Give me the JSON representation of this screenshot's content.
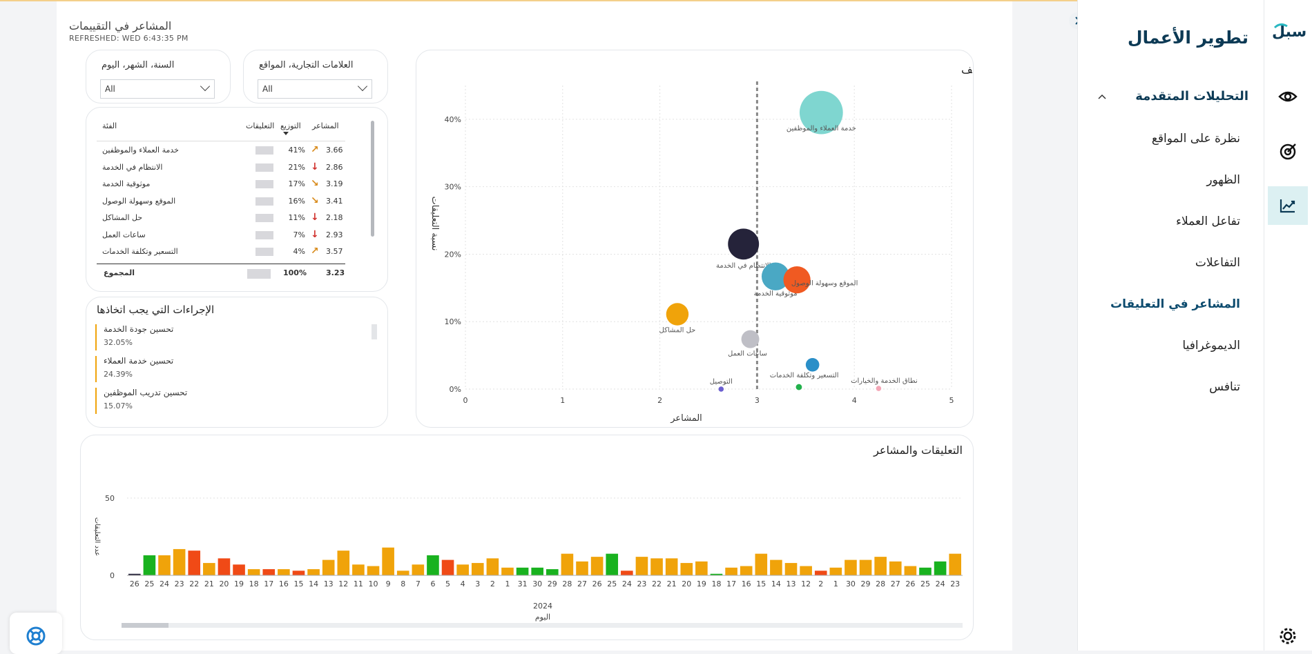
{
  "page": {
    "title": "المشاعر في التقييمات",
    "refreshed": "REFRESHED: WED 6:43:35 PM"
  },
  "slicers": {
    "date": {
      "label": "السنة، الشهر، اليوم",
      "value": "All"
    },
    "brand": {
      "label": "العلامات التجارية، المواقع",
      "value": "All"
    }
  },
  "table": {
    "headers": {
      "category": "الفئة",
      "comments": "التعليقات",
      "distribution": "التوزيع",
      "sentiment": "المشاعر"
    },
    "rows": [
      {
        "category": "خدمة العملاء والموظفين",
        "distribution": "41%",
        "sentiment": "3.66",
        "trend": "up-right",
        "trend_color": "#d88b1c"
      },
      {
        "category": "الانتظام في الخدمة",
        "distribution": "21%",
        "sentiment": "2.86",
        "trend": "down",
        "trend_color": "#d0312d"
      },
      {
        "category": "موثوقية الخدمة",
        "distribution": "17%",
        "sentiment": "3.19",
        "trend": "down-right",
        "trend_color": "#d88b1c"
      },
      {
        "category": "الموقع وسهولة الوصول",
        "distribution": "16%",
        "sentiment": "3.41",
        "trend": "down-right",
        "trend_color": "#d88b1c"
      },
      {
        "category": "حل المشاكل",
        "distribution": "11%",
        "sentiment": "2.18",
        "trend": "down",
        "trend_color": "#d0312d"
      },
      {
        "category": "ساعات العمل",
        "distribution": "7%",
        "sentiment": "2.93",
        "trend": "down",
        "trend_color": "#d0312d"
      },
      {
        "category": "التسعير وتكلفة الخدمات",
        "distribution": "4%",
        "sentiment": "3.57",
        "trend": "up-right",
        "trend_color": "#d88b1c"
      }
    ],
    "total": {
      "label": "المجموع",
      "distribution": "100%",
      "sentiment": "3.23"
    }
  },
  "actions": {
    "title": "الإجراءات التي يجب اتخاذها",
    "items": [
      {
        "label": "تحسين جودة الخدمة",
        "pct": "32.05%"
      },
      {
        "label": "تحسين خدمة العملاء",
        "pct": "24.39%"
      },
      {
        "label": "تحسين تدريب الموظفين",
        "pct": "15.07%"
      }
    ]
  },
  "sidebar": {
    "title": "تطوير الأعمال",
    "section": "التحليلات المتقدمة",
    "items": [
      "نظرة على المواقع",
      "الظهور",
      "تفاعل العملاء",
      "التفاعلات",
      "المشاعر في التعليقات",
      "الديموغرافيا",
      "تنافس"
    ],
    "active_index": 4,
    "logo": "سبل"
  },
  "colors": {
    "accent": "#0c4b6e",
    "active_icon_bg": "#dcf0f2",
    "action_bar": "#f0a30a"
  },
  "chart_data": [
    {
      "type": "scatter",
      "title": "التوزيع حسب الحجم والتصنيف",
      "xlabel": "المشاعر",
      "ylabel": "نسبة التعليقات",
      "xlim": [
        0,
        5
      ],
      "ylim": [
        0,
        0.45
      ],
      "xticks": [
        0,
        1,
        2,
        3,
        4,
        5
      ],
      "yticks": [
        "0%",
        "10%",
        "20%",
        "30%",
        "40%"
      ],
      "reference_line_x": 3,
      "points": [
        {
          "label": "خدمة العملاء والموظفين",
          "x": 3.66,
          "y": 0.41,
          "size": 41,
          "color": "#7fd6d0"
        },
        {
          "label": "الانتظام في الخدمة",
          "x": 2.86,
          "y": 0.215,
          "size": 21,
          "color": "#25233a"
        },
        {
          "label": "موثوقية الخدمة",
          "x": 3.19,
          "y": 0.167,
          "size": 17,
          "color": "#4aa8c4"
        },
        {
          "label": "الموقع وسهولة الوصول",
          "x": 3.41,
          "y": 0.162,
          "size": 16,
          "color": "#f05a22"
        },
        {
          "label": "حل المشاكل",
          "x": 2.18,
          "y": 0.111,
          "size": 11,
          "color": "#f0a30a"
        },
        {
          "label": "ساعات العمل",
          "x": 2.93,
          "y": 0.074,
          "size": 7,
          "color": "#bfbfc6"
        },
        {
          "label": "التسعير وتكلفة الخدمات",
          "x": 3.57,
          "y": 0.036,
          "size": 4,
          "color": "#2a8fc8"
        },
        {
          "label": "التوصيل",
          "x": 2.63,
          "y": 0.0,
          "size": 0.6,
          "color": "#6b5fd0"
        },
        {
          "label": "",
          "x": 3.43,
          "y": 0.003,
          "size": 0.8,
          "color": "#22b14c"
        },
        {
          "label": "نطاق الخدمة والخيارات",
          "x": 4.25,
          "y": 0.001,
          "size": 0.6,
          "color": "#f4a6b6"
        }
      ]
    },
    {
      "type": "bar",
      "title": "التعليقات والمشاعر",
      "xlabel": "اليوم",
      "ylabel": "عدد التعليقات",
      "year_label": "2024",
      "ylim": [
        0,
        50
      ],
      "yticks": [
        0,
        50
      ],
      "categories": [
        "26",
        "25",
        "24",
        "23",
        "22",
        "21",
        "20",
        "19",
        "18",
        "17",
        "16",
        "15",
        "14",
        "13",
        "12",
        "11",
        "10",
        "9",
        "8",
        "7",
        "6",
        "5",
        "4",
        "3",
        "2",
        "1",
        "31",
        "30",
        "29",
        "28",
        "27",
        "26",
        "25",
        "24",
        "23",
        "22",
        "21",
        "20",
        "19",
        "18",
        "17",
        "16",
        "15",
        "14",
        "13",
        "12",
        "2",
        "1",
        "30",
        "29",
        "28",
        "27",
        "26",
        "25",
        "24",
        "23"
      ],
      "values": [
        1,
        13,
        13,
        17,
        16,
        8,
        11,
        7,
        4,
        4,
        4,
        3,
        4,
        10,
        16,
        7,
        6,
        18,
        3,
        7,
        13,
        10,
        7,
        8,
        11,
        5,
        5,
        5,
        4,
        14,
        9,
        12,
        14,
        3,
        12,
        11,
        11,
        8,
        9,
        1,
        5,
        6,
        14,
        10,
        8,
        6,
        3,
        5,
        10,
        10,
        12,
        9,
        6,
        5,
        9,
        14
      ],
      "colors": [
        "#25233a",
        "#19b21f",
        "#f0a30a",
        "#f0a30a",
        "#f04a16",
        "#f0a30a",
        "#f04a16",
        "#f04a16",
        "#f0a30a",
        "#f04a16",
        "#f0a30a",
        "#f04a16",
        "#f0a30a",
        "#f0a30a",
        "#f0a30a",
        "#f0a30a",
        "#f0a30a",
        "#f0a30a",
        "#f0a30a",
        "#f0a30a",
        "#19b21f",
        "#f04a16",
        "#f0a30a",
        "#f0a30a",
        "#f0a30a",
        "#f0a30a",
        "#19b21f",
        "#19b21f",
        "#19b21f",
        "#f0a30a",
        "#f0a30a",
        "#f0a30a",
        "#19b21f",
        "#f04a16",
        "#f0a30a",
        "#f0a30a",
        "#f0a30a",
        "#f0a30a",
        "#f0a30a",
        "#19b21f",
        "#f0a30a",
        "#f0a30a",
        "#f0a30a",
        "#f0a30a",
        "#f0a30a",
        "#f0a30a",
        "#f04a16",
        "#f0a30a",
        "#f0a30a",
        "#f0a30a",
        "#f0a30a",
        "#f0a30a",
        "#f0a30a",
        "#19b21f",
        "#19b21f",
        "#f0a30a"
      ]
    }
  ]
}
